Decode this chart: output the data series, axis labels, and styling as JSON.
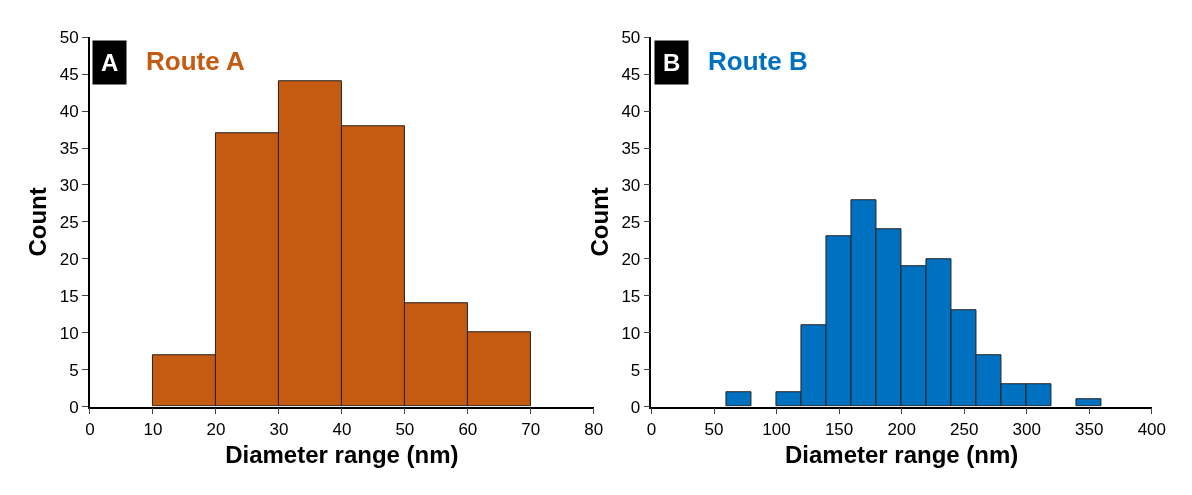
{
  "chart_data": [
    {
      "type": "histogram",
      "title": "Route A",
      "annotations": [
        "A"
      ],
      "xlabel": "Diameter range (nm)",
      "ylabel": "Count",
      "bins": [
        10,
        20,
        30,
        40,
        50,
        60,
        70
      ],
      "values": [
        7,
        37,
        44,
        38,
        14,
        10
      ],
      "color": "#c55a11",
      "xlim": [
        0,
        80
      ],
      "xticks": [
        0,
        10,
        20,
        30,
        40,
        50,
        60,
        70,
        80
      ],
      "ylim": [
        0,
        50
      ],
      "yticks": [
        0,
        5,
        10,
        15,
        20,
        25,
        30,
        35,
        40,
        45,
        50
      ]
    },
    {
      "type": "histogram",
      "title": "Route B",
      "annotations": [
        "B"
      ],
      "xlabel": "Diameter range (nm)",
      "ylabel": "Count",
      "bins": [
        60,
        80,
        100,
        120,
        140,
        160,
        180,
        200,
        220,
        240,
        260,
        280,
        300,
        320,
        340,
        360
      ],
      "values": [
        2,
        0,
        2,
        11,
        23,
        28,
        24,
        19,
        20,
        13,
        7,
        3,
        3,
        0,
        1
      ],
      "color": "#0070c0",
      "xlim": [
        0,
        400
      ],
      "xticks": [
        0,
        50,
        100,
        150,
        200,
        250,
        300,
        350,
        400
      ],
      "ylim": [
        0,
        50
      ],
      "yticks": [
        0,
        5,
        10,
        15,
        20,
        25,
        30,
        35,
        40,
        45,
        50
      ]
    }
  ]
}
